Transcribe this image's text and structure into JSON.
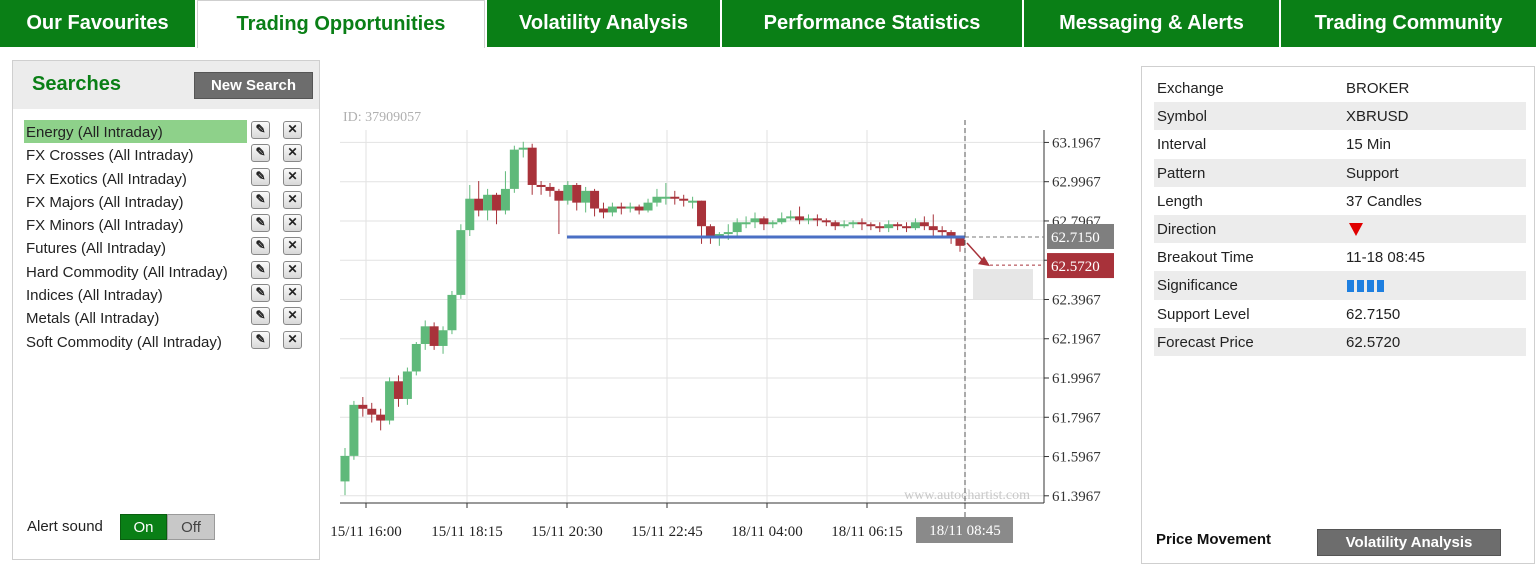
{
  "tabs": [
    {
      "label": "Our Favourites",
      "active": false
    },
    {
      "label": "Trading Opportunities",
      "active": true
    },
    {
      "label": "Volatility Analysis",
      "active": false
    },
    {
      "label": "Performance Statistics",
      "active": false
    },
    {
      "label": "Messaging & Alerts",
      "active": false
    },
    {
      "label": "Trading Community",
      "active": false
    }
  ],
  "searches": {
    "title": "Searches",
    "new_search_label": "New Search",
    "items": [
      {
        "label": "Energy (All Intraday)",
        "selected": true
      },
      {
        "label": "FX Crosses (All Intraday)"
      },
      {
        "label": "FX Exotics (All Intraday)"
      },
      {
        "label": "FX Majors (All Intraday)"
      },
      {
        "label": "FX Minors (All Intraday)"
      },
      {
        "label": "Futures (All Intraday)"
      },
      {
        "label": "Hard Commodity (All Intraday)"
      },
      {
        "label": "Indices (All Intraday)"
      },
      {
        "label": "Metals (All Intraday)"
      },
      {
        "label": "Soft Commodity (All Intraday)"
      }
    ],
    "alert_sound_label": "Alert sound",
    "alert_on_label": "On",
    "alert_off_label": "Off",
    "alert_state": "On"
  },
  "chart_data": {
    "type": "candlestick",
    "id_label": "ID: 37909057",
    "watermark": "www.autochartist.com",
    "y_ticks": [
      "63.1967",
      "62.9967",
      "62.7967",
      "62.5967",
      "62.3967",
      "62.1967",
      "61.9967",
      "61.7967",
      "61.5967",
      "61.3967"
    ],
    "y_tick_values": [
      63.1967,
      62.9967,
      62.7967,
      62.5967,
      62.3967,
      62.1967,
      61.9967,
      61.7967,
      61.5967,
      61.3967
    ],
    "ylim": [
      61.36,
      63.26
    ],
    "x_ticks": [
      "15/11 16:00",
      "15/11 18:15",
      "15/11 20:30",
      "15/11 22:45",
      "18/11 04:00",
      "18/11 06:15",
      "18/11 08:45"
    ],
    "support_level": 62.715,
    "forecast_price": 62.572,
    "support_label": "62.7150",
    "forecast_label": "62.5720",
    "up_color": "#5fb97a",
    "down_color": "#a8323a",
    "support_color": "#4a6fc4",
    "candles": [
      [
        61.47,
        61.6,
        61.4,
        61.64
      ],
      [
        61.6,
        61.86,
        61.58,
        61.88
      ],
      [
        61.86,
        61.84,
        61.8,
        61.9
      ],
      [
        61.84,
        61.81,
        61.77,
        61.87
      ],
      [
        61.81,
        61.78,
        61.73,
        61.84
      ],
      [
        61.78,
        61.98,
        61.76,
        62.0
      ],
      [
        61.98,
        61.89,
        61.85,
        62.01
      ],
      [
        61.89,
        62.03,
        61.86,
        62.05
      ],
      [
        62.03,
        62.17,
        62.01,
        62.18
      ],
      [
        62.17,
        62.26,
        62.14,
        62.29
      ],
      [
        62.26,
        62.16,
        62.14,
        62.28
      ],
      [
        62.16,
        62.24,
        62.12,
        62.26
      ],
      [
        62.24,
        62.42,
        62.22,
        62.44
      ],
      [
        62.42,
        62.75,
        62.4,
        62.78
      ],
      [
        62.75,
        62.91,
        62.72,
        62.98
      ],
      [
        62.91,
        62.85,
        62.82,
        63.0
      ],
      [
        62.85,
        62.93,
        62.8,
        62.96
      ],
      [
        62.93,
        62.85,
        62.78,
        62.94
      ],
      [
        62.85,
        62.96,
        62.83,
        63.05
      ],
      [
        62.96,
        63.16,
        62.94,
        63.18
      ],
      [
        63.16,
        63.17,
        63.12,
        63.2
      ],
      [
        63.17,
        62.98,
        62.93,
        63.19
      ],
      [
        62.98,
        62.97,
        62.93,
        63.0
      ],
      [
        62.97,
        62.95,
        62.92,
        62.99
      ],
      [
        62.95,
        62.9,
        62.73,
        62.96
      ],
      [
        62.9,
        62.98,
        62.88,
        63.0
      ],
      [
        62.98,
        62.89,
        62.85,
        62.99
      ],
      [
        62.89,
        62.95,
        62.84,
        62.97
      ],
      [
        62.95,
        62.86,
        62.82,
        62.96
      ],
      [
        62.86,
        62.84,
        62.81,
        62.89
      ],
      [
        62.84,
        62.87,
        62.82,
        62.89
      ],
      [
        62.87,
        62.86,
        62.83,
        62.89
      ],
      [
        62.86,
        62.87,
        62.84,
        62.89
      ],
      [
        62.87,
        62.85,
        62.83,
        62.88
      ],
      [
        62.85,
        62.89,
        62.84,
        62.91
      ],
      [
        62.89,
        62.92,
        62.87,
        62.96
      ],
      [
        62.92,
        62.92,
        62.88,
        62.99
      ],
      [
        62.92,
        62.91,
        62.88,
        62.95
      ],
      [
        62.91,
        62.9,
        62.87,
        62.93
      ],
      [
        62.9,
        62.9,
        62.86,
        62.92
      ],
      [
        62.9,
        62.77,
        62.68,
        62.9
      ],
      [
        62.77,
        62.72,
        62.68,
        62.78
      ],
      [
        62.72,
        62.73,
        62.67,
        62.74
      ],
      [
        62.73,
        62.74,
        62.7,
        62.78
      ],
      [
        62.74,
        62.79,
        62.72,
        62.81
      ],
      [
        62.79,
        62.79,
        62.76,
        62.82
      ],
      [
        62.79,
        62.81,
        62.76,
        62.84
      ],
      [
        62.81,
        62.78,
        62.75,
        62.82
      ],
      [
        62.78,
        62.79,
        62.76,
        62.8
      ],
      [
        62.79,
        62.81,
        62.78,
        62.84
      ],
      [
        62.81,
        62.82,
        62.8,
        62.85
      ],
      [
        62.82,
        62.8,
        62.78,
        62.87
      ],
      [
        62.8,
        62.81,
        62.78,
        62.83
      ],
      [
        62.81,
        62.8,
        62.77,
        62.83
      ],
      [
        62.8,
        62.79,
        62.77,
        62.81
      ],
      [
        62.79,
        62.77,
        62.75,
        62.8
      ],
      [
        62.77,
        62.78,
        62.76,
        62.8
      ],
      [
        62.78,
        62.79,
        62.76,
        62.8
      ],
      [
        62.79,
        62.78,
        62.75,
        62.81
      ],
      [
        62.78,
        62.77,
        62.75,
        62.79
      ],
      [
        62.77,
        62.76,
        62.74,
        62.79
      ],
      [
        62.76,
        62.78,
        62.74,
        62.8
      ],
      [
        62.78,
        62.77,
        62.75,
        62.79
      ],
      [
        62.77,
        62.76,
        62.74,
        62.79
      ],
      [
        62.76,
        62.79,
        62.75,
        62.81
      ],
      [
        62.79,
        62.77,
        62.75,
        62.82
      ],
      [
        62.77,
        62.75,
        62.72,
        62.83
      ],
      [
        62.75,
        62.74,
        62.71,
        62.77
      ],
      [
        62.74,
        62.71,
        62.68,
        62.75
      ],
      [
        62.71,
        62.67,
        62.64,
        62.72
      ]
    ]
  },
  "info": {
    "rows": [
      {
        "key": "Exchange",
        "value": "BROKER"
      },
      {
        "key": "Symbol",
        "value": "XBRUSD"
      },
      {
        "key": "Interval",
        "value": "15 Min"
      },
      {
        "key": "Pattern",
        "value": "Support"
      },
      {
        "key": "Length",
        "value": "37 Candles"
      },
      {
        "key": "Direction",
        "value": "",
        "icon": "down-triangle-icon",
        "icon_color": "#e00000"
      },
      {
        "key": "Breakout Time",
        "value": "11-18 08:45"
      },
      {
        "key": "Significance",
        "value": "",
        "significance": 4,
        "significance_max": 4,
        "icon_color": "#1e7fe0"
      },
      {
        "key": "Support Level",
        "value": "62.7150"
      },
      {
        "key": "Forecast Price",
        "value": "62.5720"
      }
    ],
    "price_movement_label": "Price Movement",
    "volatility_button_label": "Volatility Analysis"
  }
}
